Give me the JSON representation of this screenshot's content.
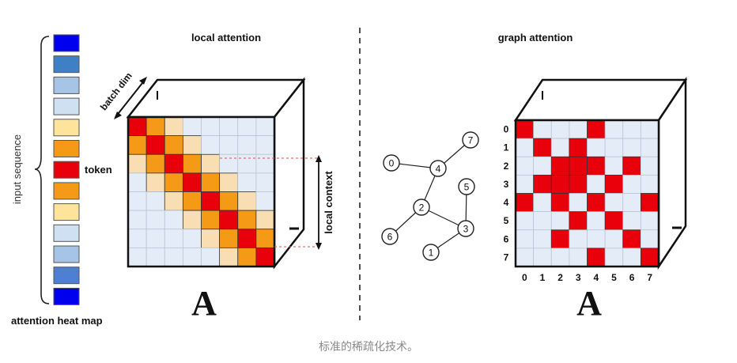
{
  "labels": {
    "local_attention": "local attention",
    "graph_attention": "graph attention",
    "input_sequence": "input sequence",
    "attention_heat_map": "attention heat map",
    "token": "token",
    "batch_dim": "batch dim",
    "local_context": "local context",
    "matrix_symbol_left": "A",
    "matrix_symbol_right": "A"
  },
  "caption": "标准的稀疏化技术。",
  "colors": {
    "cell_empty": "#e4edf7",
    "grid_line": "#b9c5d2",
    "red": "#e8000b",
    "orange": "#f49a16",
    "light_orange": "#f9deb3",
    "dashed_red": "#e05050"
  },
  "input_sequence_colors": [
    "#0000ee",
    "#3f7fc5",
    "#a6c4e6",
    "#cfe0f2",
    "#fde49a",
    "#f49a16",
    "#e8000b",
    "#f49a16",
    "#fde49a",
    "#cfe0f2",
    "#a6c4e6",
    "#4f7fd0",
    "#0000ee"
  ],
  "local_matrix": [
    [
      3,
      2,
      1,
      0,
      0,
      0,
      0,
      0
    ],
    [
      2,
      3,
      2,
      1,
      0,
      0,
      0,
      0
    ],
    [
      1,
      2,
      3,
      2,
      1,
      0,
      0,
      0
    ],
    [
      0,
      1,
      2,
      3,
      2,
      1,
      0,
      0
    ],
    [
      0,
      0,
      1,
      2,
      3,
      2,
      1,
      0
    ],
    [
      0,
      0,
      0,
      1,
      2,
      3,
      2,
      1
    ],
    [
      0,
      0,
      0,
      0,
      1,
      2,
      3,
      2
    ],
    [
      0,
      0,
      0,
      0,
      0,
      1,
      2,
      3
    ]
  ],
  "graph_axis_labels": [
    "0",
    "1",
    "2",
    "3",
    "4",
    "5",
    "6",
    "7"
  ],
  "graph_matrix": [
    [
      1,
      0,
      0,
      0,
      1,
      0,
      0,
      0
    ],
    [
      0,
      1,
      0,
      1,
      0,
      0,
      0,
      0
    ],
    [
      0,
      0,
      1,
      1,
      1,
      0,
      1,
      0
    ],
    [
      0,
      1,
      1,
      1,
      0,
      1,
      0,
      0
    ],
    [
      1,
      0,
      1,
      0,
      1,
      0,
      0,
      1
    ],
    [
      0,
      0,
      0,
      1,
      0,
      1,
      0,
      0
    ],
    [
      0,
      0,
      1,
      0,
      0,
      0,
      1,
      0
    ],
    [
      0,
      0,
      0,
      0,
      1,
      0,
      0,
      1
    ]
  ],
  "graph_nodes": [
    "0",
    "1",
    "2",
    "3",
    "4",
    "5",
    "6",
    "7"
  ],
  "graph_edges": [
    [
      "0",
      "4"
    ],
    [
      "4",
      "7"
    ],
    [
      "4",
      "2"
    ],
    [
      "2",
      "6"
    ],
    [
      "2",
      "3"
    ],
    [
      "3",
      "5"
    ],
    [
      "3",
      "1"
    ]
  ]
}
